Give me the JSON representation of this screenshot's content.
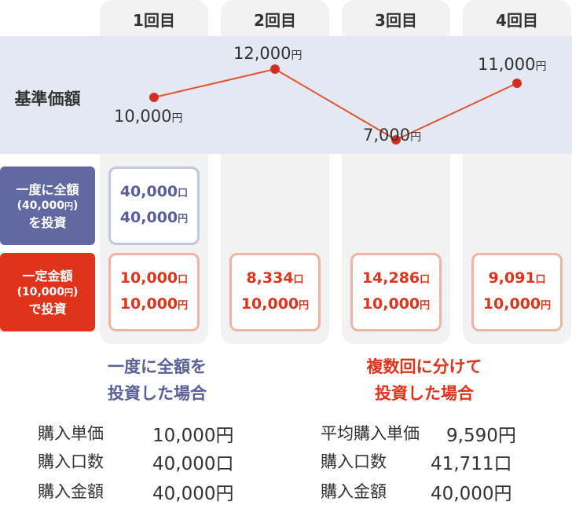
{
  "columns": [
    {
      "head": "1回目",
      "price": "10,000",
      "lump_units": "40,000",
      "lump_amount": "40,000",
      "dca_units": "10,000",
      "dca_amount": "10,000"
    },
    {
      "head": "2回目",
      "price": "12,000",
      "dca_units": "8,334",
      "dca_amount": "10,000"
    },
    {
      "head": "3回目",
      "price": "7,000",
      "dca_units": "14,286",
      "dca_amount": "10,000"
    },
    {
      "head": "4回目",
      "price": "11,000",
      "dca_units": "9,091",
      "dca_amount": "10,000"
    }
  ],
  "units": {
    "yen": "円",
    "kuchi": "口"
  },
  "row_labels": {
    "price": "基準価額",
    "lump": {
      "line1": "一度に全額",
      "line2_pre": "(40,000",
      "line2_unit": "円",
      "line2_post": ")",
      "line3": "を投資"
    },
    "dca": {
      "line1": "一定金額",
      "line2_pre": "(10,000",
      "line2_unit": "円",
      "line2_post": ")",
      "line3": "で投資"
    }
  },
  "chart_data": {
    "type": "line",
    "categories": [
      "1回目",
      "2回目",
      "3回目",
      "4回目"
    ],
    "series": [
      {
        "values": [
          10000,
          12000,
          7000,
          11000
        ]
      }
    ],
    "ylabel": "基準価額"
  },
  "summary": {
    "lump": {
      "title1": "一度に全額を",
      "title2": "投資した場合",
      "rows": [
        {
          "label": "購入単価",
          "value": "10,000円"
        },
        {
          "label": "購入口数",
          "value": "40,000口"
        },
        {
          "label": "購入金額",
          "value": "40,000円"
        }
      ]
    },
    "dca": {
      "title1": "複数回に分けて",
      "title2": "投資した場合",
      "rows": [
        {
          "label": "平均購入単価",
          "value": "9,590円"
        },
        {
          "label": "購入口数",
          "value": "41,711口"
        },
        {
          "label": "購入金額",
          "value": "40,000円"
        }
      ]
    }
  },
  "colors": {
    "blue": "#6268a2",
    "red": "#e0331b",
    "line": "#e0552d",
    "band": "#e4e8f3",
    "column": "#f2f2f2"
  }
}
